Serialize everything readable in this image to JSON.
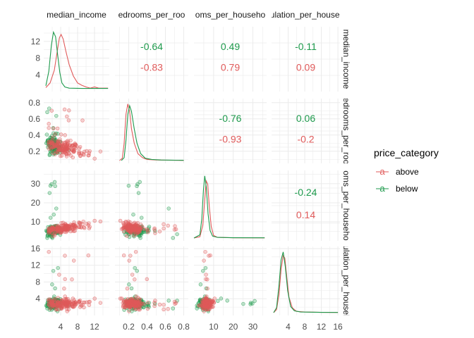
{
  "chart_data": {
    "type": "scatter",
    "variables": [
      {
        "name": "median_income",
        "strip_label": "median_income",
        "range": [
          0,
          15.5
        ],
        "ticks": [
          4,
          8,
          12
        ],
        "tick_labels": [
          "4",
          "8",
          "12"
        ]
      },
      {
        "name": "bedrooms_per_room",
        "strip_label": "edrooms_per_roo",
        "range": [
          0.05,
          0.85
        ],
        "ticks": [
          0.2,
          0.4,
          0.6,
          0.8
        ],
        "tick_labels": [
          "0.2",
          "0.4",
          "0.6",
          "0.8"
        ]
      },
      {
        "name": "rooms_per_household",
        "strip_label": "oms_per_househo",
        "range": [
          0,
          37
        ],
        "ticks": [
          10,
          20,
          30
        ],
        "tick_labels": [
          "10",
          "20",
          "30"
        ]
      },
      {
        "name": "population_per_household",
        "strip_label": "ulation_per_housel",
        "range": [
          0,
          16.5
        ],
        "ticks": [
          4,
          8,
          12,
          16
        ],
        "tick_labels": [
          "4",
          "8",
          "12",
          "16"
        ]
      }
    ],
    "series": [
      {
        "name": "above",
        "color": "#e05a5a"
      },
      {
        "name": "below",
        "color": "#1e9a4c"
      }
    ],
    "correlations": [
      {
        "row": 0,
        "col": 1,
        "above": "-0.83",
        "below": "-0.64"
      },
      {
        "row": 0,
        "col": 2,
        "above": "0.79",
        "below": "0.49"
      },
      {
        "row": 0,
        "col": 3,
        "above": "0.09",
        "below": "-0.11"
      },
      {
        "row": 1,
        "col": 2,
        "above": "-0.93",
        "below": "-0.76"
      },
      {
        "row": 1,
        "col": 3,
        "above": "-0.2",
        "below": "0.06"
      },
      {
        "row": 2,
        "col": 3,
        "above": "0.14",
        "below": "-0.24"
      }
    ],
    "densities": [
      {
        "var": 0,
        "above": [
          [
            0.5,
            0.02
          ],
          [
            1.5,
            0.1
          ],
          [
            2.5,
            0.32
          ],
          [
            3.2,
            0.65
          ],
          [
            3.7,
            0.88
          ],
          [
            4.1,
            0.94
          ],
          [
            4.6,
            0.86
          ],
          [
            5.2,
            0.66
          ],
          [
            6,
            0.42
          ],
          [
            7,
            0.22
          ],
          [
            8,
            0.1
          ],
          [
            9,
            0.06
          ],
          [
            10,
            0.03
          ],
          [
            11,
            0.01
          ],
          [
            12,
            0.03
          ],
          [
            13,
            0.01
          ],
          [
            15.2,
            0.01
          ]
        ],
        "below": [
          [
            0.5,
            0.05
          ],
          [
            1.2,
            0.3
          ],
          [
            1.8,
            0.75
          ],
          [
            2.3,
            0.98
          ],
          [
            2.8,
            0.9
          ],
          [
            3.3,
            0.58
          ],
          [
            3.8,
            0.28
          ],
          [
            4.3,
            0.1
          ],
          [
            5,
            0.03
          ],
          [
            6,
            0.01
          ],
          [
            9,
            0.005
          ],
          [
            15.2,
            0.005
          ]
        ]
      },
      {
        "var": 1,
        "above": [
          [
            0.1,
            0
          ],
          [
            0.13,
            0.04
          ],
          [
            0.15,
            0.3
          ],
          [
            0.17,
            0.8
          ],
          [
            0.19,
            0.98
          ],
          [
            0.21,
            0.85
          ],
          [
            0.23,
            0.55
          ],
          [
            0.26,
            0.3
          ],
          [
            0.3,
            0.12
          ],
          [
            0.35,
            0.05
          ],
          [
            0.4,
            0.02
          ],
          [
            0.5,
            0.01
          ],
          [
            0.6,
            0.006
          ],
          [
            0.8,
            0.003
          ]
        ],
        "below": [
          [
            0.12,
            0
          ],
          [
            0.15,
            0.05
          ],
          [
            0.17,
            0.35
          ],
          [
            0.19,
            0.8
          ],
          [
            0.21,
            0.95
          ],
          [
            0.23,
            0.85
          ],
          [
            0.26,
            0.55
          ],
          [
            0.29,
            0.3
          ],
          [
            0.33,
            0.12
          ],
          [
            0.38,
            0.04
          ],
          [
            0.45,
            0.02
          ],
          [
            0.55,
            0.01
          ],
          [
            0.8,
            0.004
          ]
        ]
      },
      {
        "var": 2,
        "above": [
          [
            0,
            0
          ],
          [
            3,
            0.02
          ],
          [
            4.5,
            0.2
          ],
          [
            5.5,
            0.6
          ],
          [
            6.2,
            0.9
          ],
          [
            7,
            0.85
          ],
          [
            7.8,
            0.5
          ],
          [
            8.8,
            0.18
          ],
          [
            10,
            0.04
          ],
          [
            12,
            0.01
          ],
          [
            20,
            0.003
          ],
          [
            36,
            0.002
          ]
        ],
        "below": [
          [
            0,
            0
          ],
          [
            3,
            0.05
          ],
          [
            4,
            0.3
          ],
          [
            4.8,
            0.75
          ],
          [
            5.5,
            0.98
          ],
          [
            6.3,
            0.8
          ],
          [
            7.2,
            0.38
          ],
          [
            8.2,
            0.12
          ],
          [
            9.5,
            0.03
          ],
          [
            12,
            0.01
          ],
          [
            20,
            0.005
          ],
          [
            36,
            0.003
          ]
        ]
      },
      {
        "var": 3,
        "above": [
          [
            0.5,
            0
          ],
          [
            1.2,
            0.05
          ],
          [
            1.8,
            0.3
          ],
          [
            2.3,
            0.7
          ],
          [
            2.8,
            0.92
          ],
          [
            3.2,
            0.88
          ],
          [
            3.7,
            0.55
          ],
          [
            4.2,
            0.25
          ],
          [
            5,
            0.08
          ],
          [
            6,
            0.02
          ],
          [
            8,
            0.01
          ],
          [
            12,
            0.005
          ],
          [
            16,
            0.003
          ]
        ],
        "below": [
          [
            0.5,
            0
          ],
          [
            1.2,
            0.08
          ],
          [
            1.8,
            0.45
          ],
          [
            2.3,
            0.85
          ],
          [
            2.8,
            0.98
          ],
          [
            3.3,
            0.75
          ],
          [
            3.9,
            0.35
          ],
          [
            4.6,
            0.1
          ],
          [
            5.5,
            0.03
          ],
          [
            7,
            0.01
          ],
          [
            12,
            0.005
          ],
          [
            16,
            0.003
          ]
        ]
      }
    ],
    "legend": {
      "title": "price_category",
      "position": "right",
      "key_glyph": "a"
    },
    "grid": true
  }
}
